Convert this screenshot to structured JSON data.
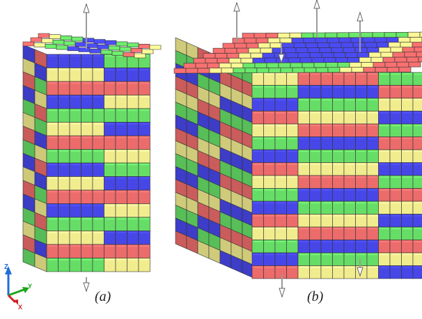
{
  "panels": [
    {
      "id": "a",
      "label": "(a)"
    },
    {
      "id": "b",
      "label": "(b)"
    }
  ],
  "triad": {
    "z": "Z",
    "y": "Y",
    "x": "X"
  },
  "colors": {
    "red": "#ec6b6b",
    "yellow": "#f1ec8e",
    "green": "#66dd66",
    "blue": "#4747e8",
    "edge": "#333333",
    "arrow": "#9a9a9a"
  }
}
